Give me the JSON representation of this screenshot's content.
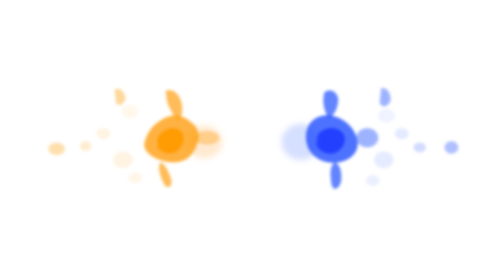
{
  "scene": {
    "background_color": "#ffffff",
    "shapes": [
      {
        "name": "orange-splash",
        "color": "#ffa51f",
        "accent": "#ff9a00"
      },
      {
        "name": "blue-splash",
        "color": "#2f5bff",
        "accent": "#1e3dff"
      }
    ]
  }
}
